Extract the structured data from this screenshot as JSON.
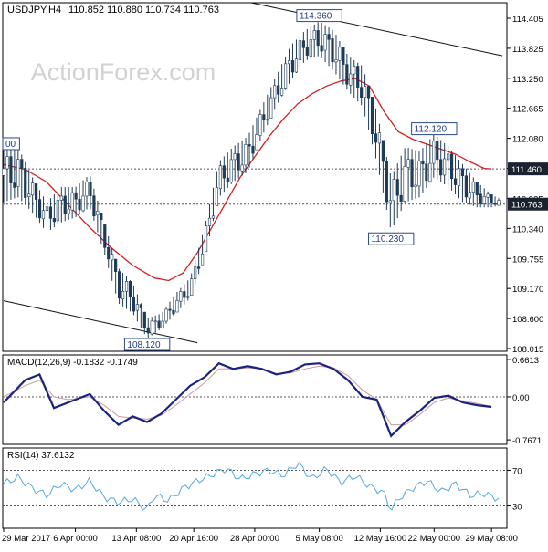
{
  "chart_data": {
    "type": "candlestick",
    "symbol": "USDJPY,H4",
    "ohlc_label": "110.852 110.880 110.734 110.763",
    "watermark": "ActionForex.com",
    "colors": {
      "candle": "#1f3b57",
      "sma": "#d42020",
      "macd_line": "#1a237e",
      "macd_signal": "#c89b9b",
      "rsi_line": "#56a8e0",
      "dotted": "#555555",
      "channel": "#111111",
      "price_marker_bg": "#1b2230"
    },
    "price_axis": {
      "ylim": [
        107.85,
        114.75
      ],
      "ticks": [
        "114.405",
        "113.825",
        "113.250",
        "112.665",
        "112.080",
        "111.460",
        "110.925",
        "110.340",
        "109.755",
        "109.170",
        "108.600",
        "108.015"
      ],
      "highlight_levels": [
        {
          "label": "111.460",
          "value": 111.46
        },
        {
          "label": "110.763",
          "value": 110.763
        }
      ]
    },
    "price_series": {
      "x_range": [
        0,
        69
      ],
      "high_points": [
        [
          0,
          111.9
        ],
        [
          2,
          111.9
        ],
        [
          4,
          111.3
        ],
        [
          6,
          110.8
        ],
        [
          8,
          111.1
        ],
        [
          10,
          111.1
        ],
        [
          12,
          111.35
        ],
        [
          14,
          110.4
        ],
        [
          16,
          109.5
        ],
        [
          18,
          109.2
        ],
        [
          20,
          108.5
        ],
        [
          22,
          108.6
        ],
        [
          24,
          109.0
        ],
        [
          26,
          109.3
        ],
        [
          28,
          110.3
        ],
        [
          30,
          111.6
        ],
        [
          32,
          111.9
        ],
        [
          34,
          112.1
        ],
        [
          36,
          112.7
        ],
        [
          38,
          113.3
        ],
        [
          40,
          113.9
        ],
        [
          42,
          114.2
        ],
        [
          44,
          114.38
        ],
        [
          46,
          114.2
        ],
        [
          48,
          113.7
        ],
        [
          50,
          113.5
        ],
        [
          52,
          112.6
        ],
        [
          54,
          111.3
        ],
        [
          56,
          111.9
        ],
        [
          58,
          111.8
        ],
        [
          60,
          112.15
        ],
        [
          62,
          111.9
        ],
        [
          64,
          111.55
        ],
        [
          66,
          111.2
        ],
        [
          68,
          110.95
        ],
        [
          69,
          110.88
        ]
      ],
      "low_points": [
        [
          0,
          110.8
        ],
        [
          2,
          110.9
        ],
        [
          4,
          110.6
        ],
        [
          6,
          110.2
        ],
        [
          8,
          110.4
        ],
        [
          10,
          110.5
        ],
        [
          12,
          110.7
        ],
        [
          14,
          109.8
        ],
        [
          16,
          108.8
        ],
        [
          18,
          108.6
        ],
        [
          20,
          108.1
        ],
        [
          22,
          108.3
        ],
        [
          24,
          108.6
        ],
        [
          26,
          108.9
        ],
        [
          28,
          109.7
        ],
        [
          30,
          110.9
        ],
        [
          32,
          111.2
        ],
        [
          34,
          111.4
        ],
        [
          36,
          112.1
        ],
        [
          38,
          112.7
        ],
        [
          40,
          113.2
        ],
        [
          42,
          113.6
        ],
        [
          44,
          113.7
        ],
        [
          46,
          113.4
        ],
        [
          48,
          113.0
        ],
        [
          50,
          112.7
        ],
        [
          52,
          111.6
        ],
        [
          54,
          110.23
        ],
        [
          56,
          110.8
        ],
        [
          58,
          110.9
        ],
        [
          60,
          111.3
        ],
        [
          62,
          111.1
        ],
        [
          64,
          110.8
        ],
        [
          66,
          110.7
        ],
        [
          68,
          110.7
        ],
        [
          69,
          110.73
        ]
      ],
      "sma_points": [
        [
          0,
          111.55
        ],
        [
          3,
          111.45
        ],
        [
          6,
          111.2
        ],
        [
          9,
          110.75
        ],
        [
          12,
          110.3
        ],
        [
          15,
          109.9
        ],
        [
          18,
          109.55
        ],
        [
          21,
          109.3
        ],
        [
          23,
          109.25
        ],
        [
          25,
          109.4
        ],
        [
          27,
          109.8
        ],
        [
          29,
          110.3
        ],
        [
          31,
          110.8
        ],
        [
          33,
          111.3
        ],
        [
          35,
          111.7
        ],
        [
          37,
          112.1
        ],
        [
          39,
          112.45
        ],
        [
          41,
          112.75
        ],
        [
          43,
          112.95
        ],
        [
          45,
          113.1
        ],
        [
          47,
          113.2
        ],
        [
          49,
          113.25
        ],
        [
          51,
          113.1
        ],
        [
          53,
          112.6
        ],
        [
          55,
          112.2
        ],
        [
          57,
          112.05
        ],
        [
          59,
          111.95
        ],
        [
          61,
          111.85
        ],
        [
          63,
          111.75
        ],
        [
          65,
          111.6
        ],
        [
          67,
          111.47
        ],
        [
          68,
          111.46
        ]
      ]
    },
    "annotations": [
      {
        "label": "114.360",
        "x": 44,
        "value": 114.36,
        "anchor": "top"
      },
      {
        "label": "112.120",
        "x": 60,
        "value": 112.12,
        "anchor": "top"
      },
      {
        "label": "110.230",
        "x": 54,
        "value": 110.23,
        "anchor": "bottom"
      },
      {
        "label": "108.120",
        "x": 20,
        "value": 108.12,
        "anchor": "bottom"
      },
      {
        "label": "00",
        "x": 0,
        "value": 111.96,
        "anchor": "left"
      }
    ],
    "trendlines": [
      {
        "from": [
          34.5,
          114.75
        ],
        "to": [
          69.5,
          113.7
        ]
      },
      {
        "from": [
          0,
          108.85
        ],
        "to": [
          27,
          108.02
        ]
      }
    ],
    "macd": {
      "label": "MACD(12,26,9) -0.1832 -0.1749",
      "ticks": [
        "0.6613",
        "0.00",
        "-0.7671"
      ],
      "ylim": [
        -0.85,
        0.75
      ],
      "zero": 0,
      "line": [
        [
          0,
          -0.1
        ],
        [
          3,
          0.3
        ],
        [
          5,
          0.4
        ],
        [
          7,
          -0.2
        ],
        [
          9,
          -0.1
        ],
        [
          12,
          0.05
        ],
        [
          14,
          -0.25
        ],
        [
          16,
          -0.5
        ],
        [
          18,
          -0.35
        ],
        [
          20,
          -0.45
        ],
        [
          22,
          -0.3
        ],
        [
          24,
          -0.05
        ],
        [
          26,
          0.2
        ],
        [
          28,
          0.35
        ],
        [
          30,
          0.6
        ],
        [
          32,
          0.5
        ],
        [
          34,
          0.55
        ],
        [
          36,
          0.5
        ],
        [
          38,
          0.4
        ],
        [
          40,
          0.45
        ],
        [
          42,
          0.58
        ],
        [
          44,
          0.6
        ],
        [
          46,
          0.5
        ],
        [
          48,
          0.3
        ],
        [
          50,
          0.0
        ],
        [
          52,
          -0.05
        ],
        [
          54,
          -0.7
        ],
        [
          56,
          -0.45
        ],
        [
          58,
          -0.25
        ],
        [
          60,
          -0.02
        ],
        [
          62,
          0.02
        ],
        [
          64,
          -0.1
        ],
        [
          66,
          -0.15
        ],
        [
          68,
          -0.18
        ]
      ],
      "signal": [
        [
          0,
          0.0
        ],
        [
          3,
          0.2
        ],
        [
          5,
          0.3
        ],
        [
          7,
          0.0
        ],
        [
          9,
          -0.05
        ],
        [
          12,
          0.0
        ],
        [
          14,
          -0.15
        ],
        [
          16,
          -0.35
        ],
        [
          18,
          -0.38
        ],
        [
          20,
          -0.4
        ],
        [
          22,
          -0.33
        ],
        [
          24,
          -0.15
        ],
        [
          26,
          0.05
        ],
        [
          28,
          0.25
        ],
        [
          30,
          0.5
        ],
        [
          32,
          0.5
        ],
        [
          34,
          0.52
        ],
        [
          36,
          0.5
        ],
        [
          38,
          0.42
        ],
        [
          40,
          0.43
        ],
        [
          42,
          0.5
        ],
        [
          44,
          0.55
        ],
        [
          46,
          0.52
        ],
        [
          48,
          0.38
        ],
        [
          50,
          0.12
        ],
        [
          52,
          -0.05
        ],
        [
          54,
          -0.5
        ],
        [
          56,
          -0.5
        ],
        [
          58,
          -0.32
        ],
        [
          60,
          -0.1
        ],
        [
          62,
          -0.02
        ],
        [
          64,
          -0.07
        ],
        [
          66,
          -0.12
        ],
        [
          68,
          -0.17
        ]
      ]
    },
    "rsi": {
      "label": "RSI(14) 37.6132",
      "ticks": [
        "70",
        "30"
      ],
      "ylim": [
        5,
        95
      ],
      "levels": [
        70,
        30
      ],
      "values": [
        [
          0,
          55
        ],
        [
          2,
          62
        ],
        [
          4,
          50
        ],
        [
          6,
          42
        ],
        [
          8,
          55
        ],
        [
          10,
          48
        ],
        [
          12,
          58
        ],
        [
          14,
          40
        ],
        [
          16,
          34
        ],
        [
          18,
          38
        ],
        [
          20,
          25
        ],
        [
          21,
          42
        ],
        [
          23,
          36
        ],
        [
          25,
          50
        ],
        [
          27,
          58
        ],
        [
          29,
          65
        ],
        [
          31,
          72
        ],
        [
          33,
          60
        ],
        [
          35,
          66
        ],
        [
          37,
          70
        ],
        [
          39,
          64
        ],
        [
          41,
          78
        ],
        [
          43,
          60
        ],
        [
          45,
          72
        ],
        [
          47,
          56
        ],
        [
          49,
          64
        ],
        [
          51,
          52
        ],
        [
          53,
          45
        ],
        [
          54,
          25
        ],
        [
          55,
          38
        ],
        [
          57,
          50
        ],
        [
          59,
          58
        ],
        [
          61,
          46
        ],
        [
          63,
          55
        ],
        [
          65,
          42
        ],
        [
          67,
          44
        ],
        [
          69,
          38
        ]
      ]
    },
    "x_axis": {
      "ticks": [
        {
          "label": "29 Mar 2017",
          "x": 0
        },
        {
          "label": "6 Apr 00:00",
          "x": 10
        },
        {
          "label": "13 Apr 08:00",
          "x": 18.5
        },
        {
          "label": "20 Apr 16:00",
          "x": 26.5
        },
        {
          "label": "28 Apr 00:00",
          "x": 35
        },
        {
          "label": "5 May 08:00",
          "x": 44
        },
        {
          "label": "12 May 16:00",
          "x": 52.5
        },
        {
          "label": "22 May 00:00",
          "x": 60
        },
        {
          "label": "29 May 08:00",
          "x": 68
        }
      ]
    }
  }
}
